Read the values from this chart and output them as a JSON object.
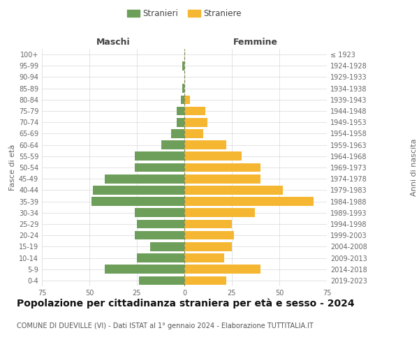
{
  "age_groups": [
    "100+",
    "95-99",
    "90-94",
    "85-89",
    "80-84",
    "75-79",
    "70-74",
    "65-69",
    "60-64",
    "55-59",
    "50-54",
    "45-49",
    "40-44",
    "35-39",
    "30-34",
    "25-29",
    "20-24",
    "15-19",
    "10-14",
    "5-9",
    "0-4"
  ],
  "birth_years": [
    "≤ 1923",
    "1924-1928",
    "1929-1933",
    "1934-1938",
    "1939-1943",
    "1944-1948",
    "1949-1953",
    "1954-1958",
    "1959-1963",
    "1964-1968",
    "1969-1973",
    "1974-1978",
    "1979-1983",
    "1984-1988",
    "1989-1993",
    "1994-1998",
    "1999-2003",
    "2004-2008",
    "2009-2013",
    "2014-2018",
    "2019-2023"
  ],
  "males": [
    0,
    1,
    0,
    1,
    2,
    4,
    4,
    7,
    12,
    26,
    26,
    42,
    48,
    49,
    26,
    25,
    26,
    18,
    25,
    42,
    24
  ],
  "females": [
    0,
    0,
    0,
    0,
    3,
    11,
    12,
    10,
    22,
    30,
    40,
    40,
    52,
    68,
    37,
    25,
    26,
    25,
    21,
    40,
    22
  ],
  "male_color": "#6d9e5a",
  "female_color": "#f5b731",
  "dashed_line_color": "#8a8a5a",
  "background_color": "#ffffff",
  "grid_color": "#d8d8d8",
  "title": "Popolazione per cittadinanza straniera per età e sesso - 2024",
  "subtitle": "COMUNE DI DUEVILLE (VI) - Dati ISTAT al 1° gennaio 2024 - Elaborazione TUTTITALIA.IT",
  "left_header": "Maschi",
  "right_header": "Femmine",
  "ylabel": "Fasce di età",
  "right_ylabel": "Anni di nascita",
  "legend_male": "Stranieri",
  "legend_female": "Straniere",
  "xlim": 75,
  "title_fontsize": 10,
  "subtitle_fontsize": 7,
  "header_fontsize": 9,
  "axis_label_fontsize": 8,
  "tick_fontsize": 7,
  "legend_fontsize": 8.5
}
